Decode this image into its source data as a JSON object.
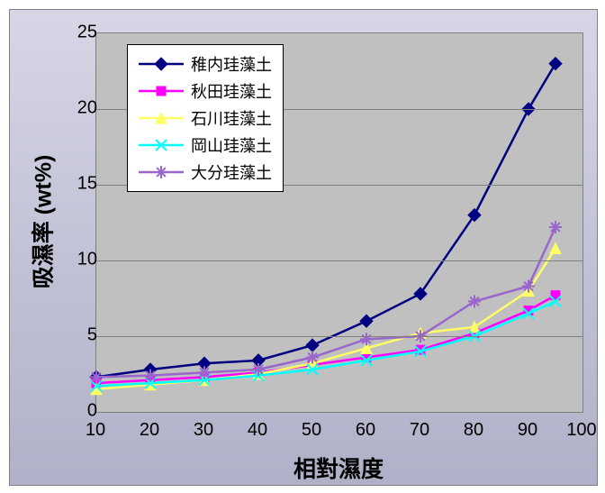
{
  "chart": {
    "type": "line",
    "yAxis": {
      "label": "吸濕率 (wt%)",
      "min": 0,
      "max": 25,
      "ticks": [
        0,
        5,
        10,
        15,
        20,
        25
      ],
      "label_fontsize": 25
    },
    "xAxis": {
      "label": "相對濕度",
      "min": 10,
      "max": 100,
      "ticks": [
        10,
        20,
        30,
        40,
        50,
        60,
        70,
        80,
        90,
        100
      ],
      "label_fontsize": 25
    },
    "xData": [
      10,
      20,
      30,
      40,
      50,
      60,
      70,
      80,
      90,
      95
    ],
    "plot_background": "#c0c0c0",
    "frame_gradient_top": "#d6d6e6",
    "frame_gradient_bottom": "#b0b0c8",
    "grid_color": "#808080",
    "tick_fontsize": 20,
    "series": [
      {
        "name": "稚内珪藻土",
        "color": "#000080",
        "marker": "diamond",
        "lineWidth": 2.5,
        "markerSize": 7,
        "data": [
          2.3,
          2.8,
          3.2,
          3.4,
          4.4,
          6.0,
          7.8,
          13.0,
          20.0,
          23.0
        ]
      },
      {
        "name": "秋田珪藻土",
        "color": "#ff00ff",
        "marker": "square",
        "lineWidth": 2.5,
        "markerSize": 5,
        "data": [
          1.9,
          2.1,
          2.3,
          2.6,
          3.1,
          3.6,
          4.1,
          5.2,
          6.7,
          7.7
        ]
      },
      {
        "name": "石川珪藻土",
        "color": "#ffff66",
        "marker": "triangle",
        "lineWidth": 2.5,
        "markerSize": 6,
        "data": [
          1.5,
          1.8,
          2.1,
          2.5,
          3.2,
          4.2,
          5.2,
          5.6,
          8.0,
          10.8
        ]
      },
      {
        "name": "岡山珪藻土",
        "color": "#00ffff",
        "marker": "x",
        "lineWidth": 2.5,
        "markerSize": 6,
        "data": [
          1.7,
          1.9,
          2.1,
          2.4,
          2.8,
          3.4,
          4.0,
          5.0,
          6.5,
          7.3
        ]
      },
      {
        "name": "大分珪藻土",
        "color": "#9966cc",
        "marker": "star",
        "lineWidth": 2.5,
        "markerSize": 7,
        "data": [
          2.3,
          2.4,
          2.6,
          2.8,
          3.6,
          4.8,
          5.0,
          7.3,
          8.3,
          12.2
        ]
      }
    ]
  }
}
